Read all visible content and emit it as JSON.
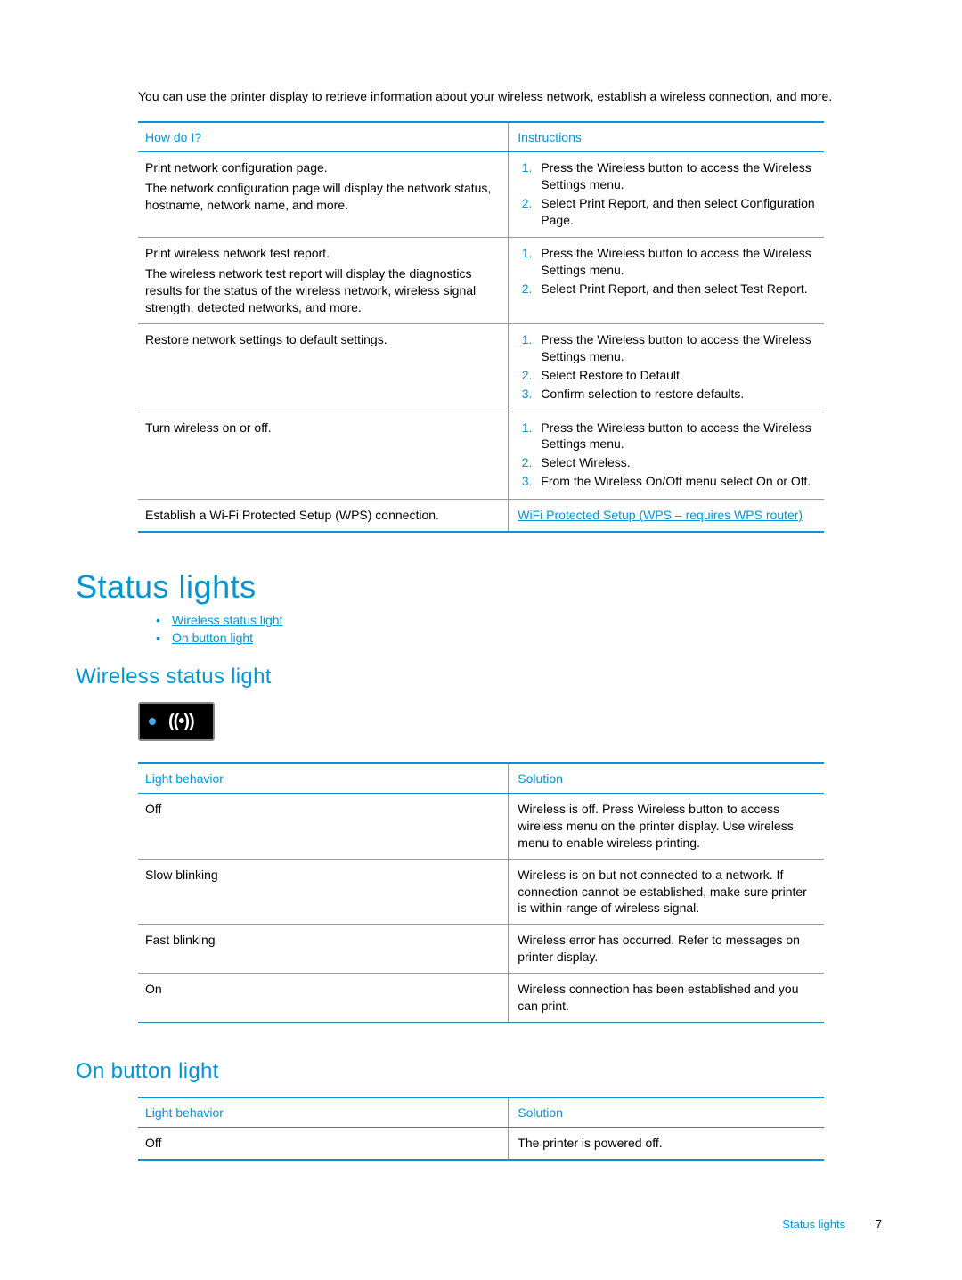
{
  "intro": "You can use the printer display to retrieve information about your wireless network, establish a wireless connection, and more.",
  "table1": {
    "headers": [
      "How do I?",
      "Instructions"
    ],
    "rows": [
      {
        "title": "Print network configuration page.",
        "desc": "The network configuration page will display the network status, hostname, network name, and more.",
        "steps": [
          "Press the Wireless button to access the Wireless Settings menu.",
          "Select Print Report, and then select Configuration Page."
        ]
      },
      {
        "title": "Print wireless network test report.",
        "desc": "The wireless network test report will display the diagnostics results for the status of the wireless network, wireless signal strength, detected networks, and more.",
        "steps": [
          "Press the Wireless button to access the Wireless Settings menu.",
          "Select Print Report, and then select Test Report."
        ]
      },
      {
        "title": "Restore network settings to default settings.",
        "desc": "",
        "steps": [
          "Press the Wireless button to access the Wireless Settings menu.",
          "Select Restore to Default.",
          "Confirm selection to restore defaults."
        ]
      },
      {
        "title": "Turn wireless on or off.",
        "desc": "",
        "steps": [
          "Press the Wireless button to access the Wireless Settings menu.",
          "Select Wireless.",
          "From the Wireless On/Off menu select On or Off."
        ]
      },
      {
        "title": "Establish a Wi-Fi Protected Setup (WPS) connection.",
        "desc": "",
        "link": "WiFi Protected Setup (WPS – requires WPS router)"
      }
    ]
  },
  "h1": "Status lights",
  "toc": [
    "Wireless status light",
    "On button light"
  ],
  "sub1": "Wireless status light",
  "wifi_glyph": "((•))",
  "table2": {
    "headers": [
      "Light behavior",
      "Solution"
    ],
    "rows": [
      {
        "b": "Off",
        "s": "Wireless is off. Press Wireless button to access wireless menu on the printer display. Use wireless menu to enable wireless printing."
      },
      {
        "b": "Slow blinking",
        "s": "Wireless is on but not connected to a network. If connection cannot be established, make sure printer is within range of wireless signal."
      },
      {
        "b": "Fast blinking",
        "s": "Wireless error has occurred. Refer to messages on printer display."
      },
      {
        "b": "On",
        "s": "Wireless connection has been established and you can print."
      }
    ]
  },
  "sub2": "On button light",
  "table3": {
    "headers": [
      "Light behavior",
      "Solution"
    ],
    "rows": [
      {
        "b": "Off",
        "s": "The printer is powered off."
      }
    ]
  },
  "footer": {
    "crumb": "Status lights",
    "page": "7"
  }
}
